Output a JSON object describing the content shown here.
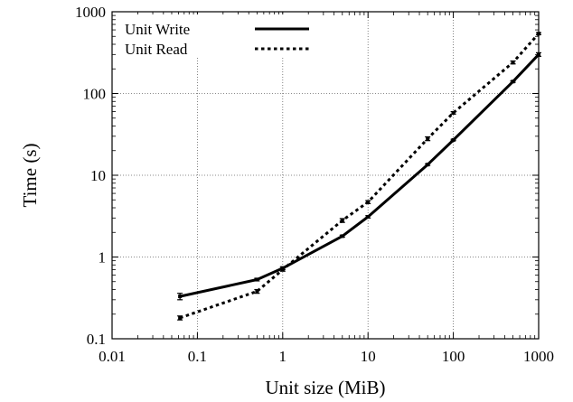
{
  "chart_data": {
    "type": "line",
    "title": "",
    "xlabel": "Unit size (MiB)",
    "ylabel": "Time (s)",
    "xscale": "log",
    "yscale": "log",
    "xlim": [
      0.01,
      1000
    ],
    "ylim": [
      0.1,
      1000
    ],
    "grid": true,
    "legend_position": "top-left",
    "x_tick_labels": [
      "0.01",
      "0.1",
      "1",
      "10",
      "100",
      "1000"
    ],
    "y_tick_labels": [
      "0.1",
      "1",
      "10",
      "100",
      "1000"
    ],
    "x_ticks": [
      0.01,
      0.1,
      1,
      10,
      100,
      1000
    ],
    "y_ticks": [
      0.1,
      1,
      10,
      100,
      1000
    ],
    "series": [
      {
        "name": "Unit Write",
        "style": "solid",
        "color": "#000000",
        "x": [
          0.0625,
          0.5,
          1,
          5,
          10,
          50,
          100,
          500,
          1000
        ],
        "y": [
          0.33,
          0.53,
          0.73,
          1.8,
          3.1,
          13.5,
          27,
          140,
          300
        ],
        "y_err": [
          0.03,
          0.02,
          0.03,
          0.05,
          0.1,
          0.3,
          0.5,
          3,
          15
        ]
      },
      {
        "name": "Unit Read",
        "style": "dotted",
        "color": "#000000",
        "x": [
          0.0625,
          0.5,
          1,
          5,
          10,
          50,
          100,
          500,
          1000
        ],
        "y": [
          0.18,
          0.38,
          0.7,
          2.8,
          4.7,
          28,
          58,
          240,
          540
        ],
        "y_err": [
          0.01,
          0.02,
          0.03,
          0.15,
          0.2,
          1.5,
          2,
          10,
          15
        ]
      }
    ]
  }
}
